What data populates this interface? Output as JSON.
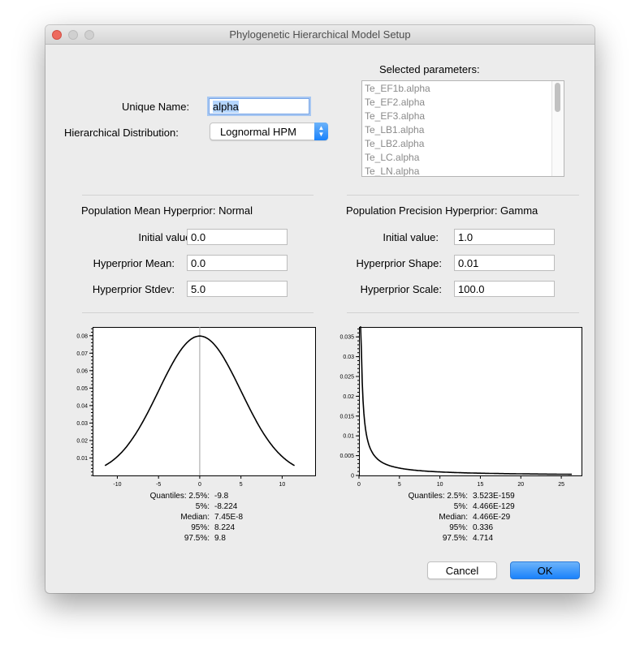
{
  "window": {
    "title": "Phylogenetic Hierarchical Model Setup"
  },
  "form": {
    "unique_name_label": "Unique Name:",
    "unique_name_value": "alpha",
    "distribution_label": "Hierarchical Distribution:",
    "distribution_value": "Lognormal HPM"
  },
  "selected_parameters": {
    "label": "Selected parameters:",
    "items": [
      "Te_EF1b.alpha",
      "Te_EF2.alpha",
      "Te_EF3.alpha",
      "Te_LB1.alpha",
      "Te_LB2.alpha",
      "Te_LC.alpha",
      "Te_LN.alpha"
    ]
  },
  "mean_panel": {
    "heading": "Population Mean Hyperprior: Normal",
    "initial_label": "Initial value:",
    "initial_value": "0.0",
    "p1_label": "Hyperprior Mean:",
    "p1_value": "0.0",
    "p2_label": "Hyperprior Stdev:",
    "p2_value": "5.0",
    "quantiles": [
      {
        "key": "Quantiles: 2.5%:",
        "value": "-9.8"
      },
      {
        "key": "5%:",
        "value": "-8.224"
      },
      {
        "key": "Median:",
        "value": "7.45E-8"
      },
      {
        "key": "95%:",
        "value": "8.224"
      },
      {
        "key": "97.5%:",
        "value": "9.8"
      }
    ]
  },
  "precision_panel": {
    "heading": "Population Precision Hyperprior: Gamma",
    "initial_label": "Initial value:",
    "initial_value": "1.0",
    "p1_label": "Hyperprior Shape:",
    "p1_value": "0.01",
    "p2_label": "Hyperprior Scale:",
    "p2_value": "100.0",
    "quantiles": [
      {
        "key": "Quantiles: 2.5%:",
        "value": "3.523E-159"
      },
      {
        "key": "5%:",
        "value": "4.466E-129"
      },
      {
        "key": "Median:",
        "value": "4.466E-29"
      },
      {
        "key": "95%:",
        "value": "0.336"
      },
      {
        "key": "97.5%:",
        "value": "4.714"
      }
    ]
  },
  "buttons": {
    "cancel": "Cancel",
    "ok": "OK"
  },
  "colors": {
    "accent": "#1a82fb",
    "close": "#ed6a5e",
    "curve": "#000000",
    "zero_line": "#a0a0a0"
  },
  "chart_data": [
    {
      "type": "line",
      "name": "normal-density",
      "distribution": {
        "family": "normal",
        "mean": 0,
        "stdev": 5
      },
      "x_range": [
        -11.5,
        11.5
      ],
      "xlim": [
        -13,
        14
      ],
      "ylim": [
        0,
        0.085
      ],
      "xticks": [
        -10,
        -5,
        0,
        5,
        10
      ],
      "yticks": [
        0.01,
        0.02,
        0.03,
        0.04,
        0.05,
        0.06,
        0.07,
        0.08
      ],
      "xtick_labels": [
        "-10",
        "-5",
        "0",
        "5",
        "10"
      ],
      "ytick_labels": [
        "0.01",
        "0.02",
        "0.03",
        "0.04",
        "0.05",
        "0.06",
        "0.07",
        "0.08"
      ],
      "zero_line": true
    },
    {
      "type": "line",
      "name": "gamma-density",
      "distribution": {
        "family": "gamma",
        "shape": 0.01,
        "scale": 100
      },
      "x_range": [
        0.1,
        26.3
      ],
      "xlim": [
        0,
        27.5
      ],
      "ylim": [
        0,
        0.0375
      ],
      "xticks": [
        0,
        5,
        10,
        15,
        20,
        25
      ],
      "yticks": [
        0,
        0.005,
        0.01,
        0.015,
        0.02,
        0.025,
        0.03,
        0.035
      ],
      "xtick_labels": [
        "0",
        "5",
        "10",
        "15",
        "20",
        "25"
      ],
      "ytick_labels": [
        "0",
        "0.005",
        "0.01",
        "0.015",
        "0.02",
        "0.025",
        "0.03",
        "0.035"
      ],
      "zero_line": false
    }
  ]
}
